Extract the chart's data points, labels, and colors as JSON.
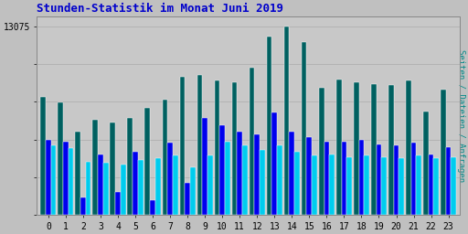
{
  "title": "Stunden-Statistik im Monat Juni 2019",
  "title_color": "#0000cc",
  "background_color": "#c0c0c0",
  "plot_background_color": "#c8c8c8",
  "ylabel_right": "Seiten / Dateien / Anfragen",
  "ylabel_right_color": "#008888",
  "ytick_label": "13075",
  "x_labels": [
    "0",
    "1",
    "2",
    "3",
    "4",
    "5",
    "6",
    "7",
    "8",
    "9",
    "10",
    "11",
    "12",
    "13",
    "14",
    "15",
    "16",
    "17",
    "18",
    "19",
    "20",
    "21",
    "22",
    "23"
  ],
  "hours": [
    0,
    1,
    2,
    3,
    4,
    5,
    6,
    7,
    8,
    9,
    10,
    11,
    12,
    13,
    14,
    15,
    16,
    17,
    18,
    19,
    20,
    21,
    22,
    23
  ],
  "green_bars": [
    8200,
    7800,
    5800,
    6600,
    6400,
    6700,
    7400,
    8000,
    9600,
    9700,
    9300,
    9200,
    10200,
    12400,
    13075,
    12000,
    8800,
    9400,
    9200,
    9100,
    9000,
    9300,
    7200,
    8700
  ],
  "blue_bars": [
    5200,
    5100,
    1200,
    4200,
    1600,
    4400,
    1000,
    5000,
    2200,
    6700,
    6200,
    5800,
    5600,
    7100,
    5800,
    5400,
    5100,
    5100,
    5200,
    4900,
    4800,
    5000,
    4200,
    4700
  ],
  "cyan_bars": [
    4800,
    4600,
    3700,
    3600,
    3500,
    3800,
    3900,
    4100,
    3300,
    4100,
    5100,
    4800,
    4500,
    4800,
    4400,
    4100,
    4200,
    4000,
    4100,
    4000,
    3900,
    4100,
    3900,
    4000
  ],
  "green_color": "#006060",
  "blue_color": "#0000ee",
  "cyan_color": "#00ccee",
  "bar_width": 0.3,
  "ylim": [
    0,
    13800
  ],
  "grid_color": "#b0b0b0",
  "grid_linewidth": 0.6,
  "figsize": [
    5.12,
    2.56
  ],
  "dpi": 100
}
